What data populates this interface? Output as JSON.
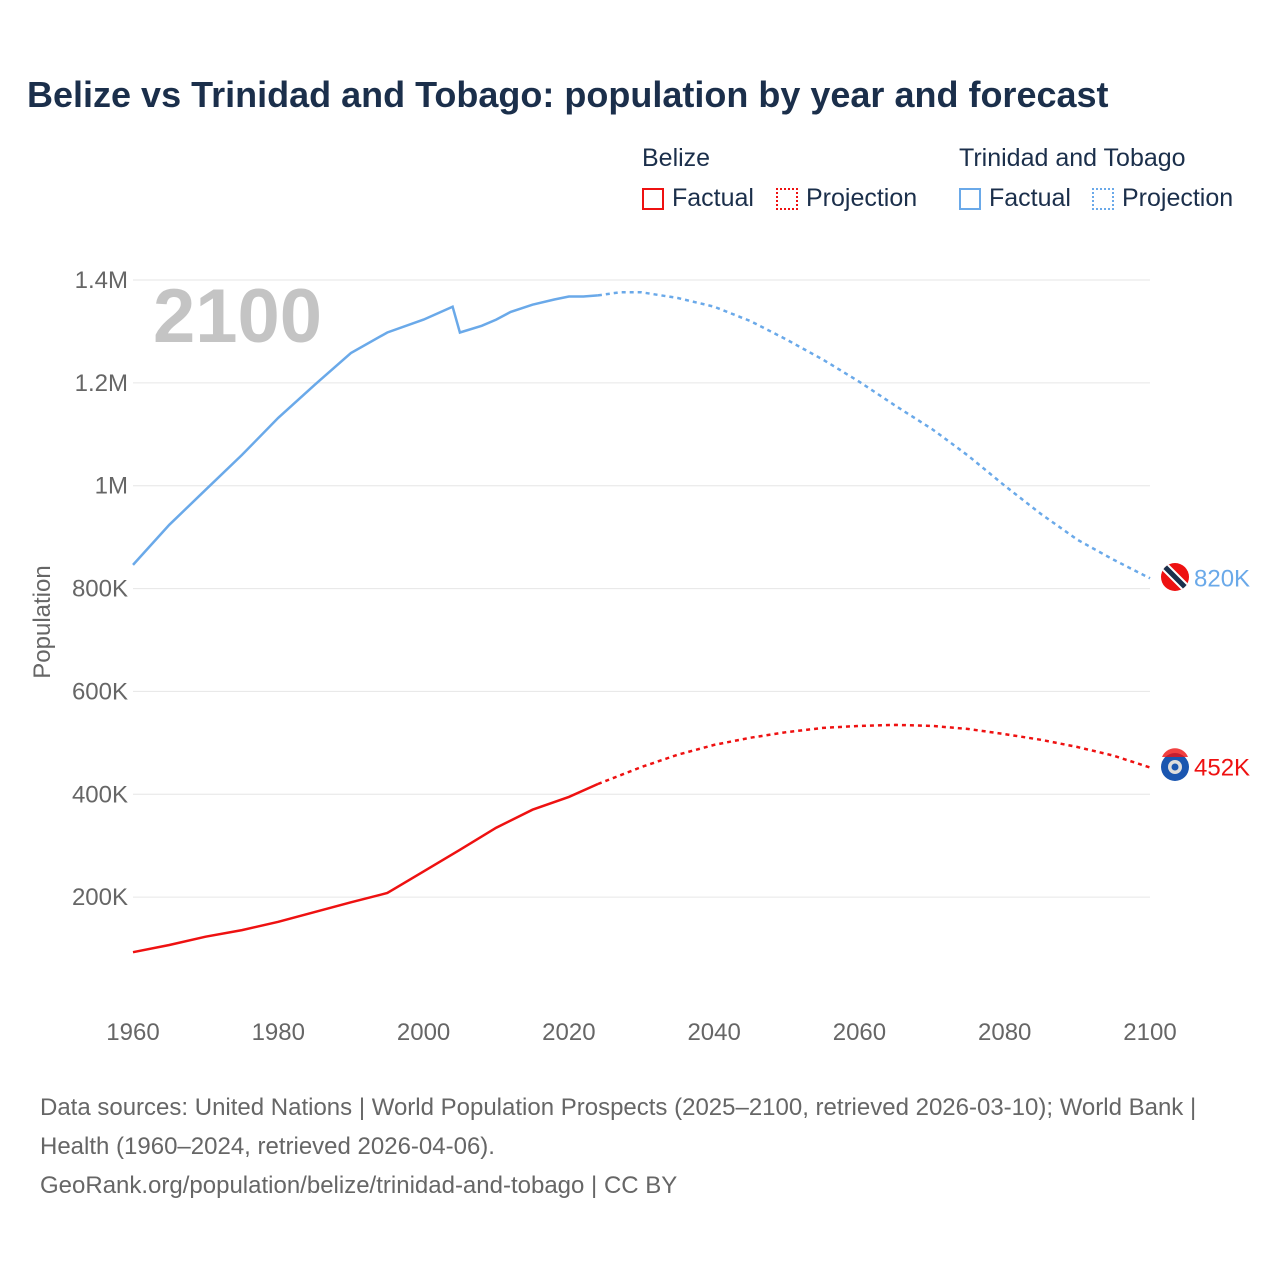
{
  "title": "Belize vs Trinidad and Tobago: population by year and forecast",
  "legend": {
    "groups": [
      {
        "name": "Belize",
        "factual": "Factual",
        "projection": "Projection",
        "color": "#ee1111"
      },
      {
        "name": "Trinidad and Tobago",
        "factual": "Factual",
        "projection": "Projection",
        "color": "#6aa9e9"
      }
    ]
  },
  "year_label": "2100",
  "source": "Data sources: United Nations | World Population Prospects (2025–2100, retrieved 2026-03-10); World Bank | Health (1960–2024, retrieved 2026-04-06).",
  "credit": "GeoRank.org/population/belize/trinidad-and-tobago | CC BY",
  "chart_data": {
    "type": "line",
    "title": "Belize vs Trinidad and Tobago: population by year and forecast",
    "ylabel": "Population",
    "xlabel": "",
    "xlim": [
      1960,
      2100
    ],
    "ylim": [
      0,
      1400000
    ],
    "xticks": [
      1960,
      1980,
      2000,
      2020,
      2040,
      2060,
      2080,
      2100
    ],
    "xtick_labels": [
      "1960",
      "1980",
      "2000",
      "2020",
      "2040",
      "2060",
      "2080",
      "2100"
    ],
    "yticks": [
      200000,
      400000,
      600000,
      800000,
      1000000,
      1200000,
      1400000
    ],
    "ytick_labels": [
      "200K",
      "400K",
      "600K",
      "800K",
      "1M",
      "1.2M",
      "1.4M"
    ],
    "grid": true,
    "series": [
      {
        "name": "Belize",
        "color": "#ee1111",
        "end_label": "452K",
        "factual": [
          [
            1960,
            93000
          ],
          [
            1965,
            107000
          ],
          [
            1970,
            123000
          ],
          [
            1975,
            136000
          ],
          [
            1980,
            152000
          ],
          [
            1985,
            171000
          ],
          [
            1990,
            190000
          ],
          [
            1995,
            208000
          ],
          [
            2000,
            250000
          ],
          [
            2005,
            292000
          ],
          [
            2010,
            335000
          ],
          [
            2015,
            370000
          ],
          [
            2020,
            395000
          ],
          [
            2024,
            420000
          ]
        ],
        "projection": [
          [
            2024,
            420000
          ],
          [
            2030,
            453000
          ],
          [
            2035,
            477000
          ],
          [
            2040,
            496000
          ],
          [
            2045,
            510000
          ],
          [
            2050,
            521000
          ],
          [
            2055,
            529000
          ],
          [
            2060,
            533000
          ],
          [
            2065,
            535000
          ],
          [
            2070,
            533000
          ],
          [
            2075,
            527000
          ],
          [
            2080,
            517000
          ],
          [
            2085,
            506000
          ],
          [
            2090,
            492000
          ],
          [
            2095,
            475000
          ],
          [
            2100,
            452000
          ]
        ]
      },
      {
        "name": "Trinidad and Tobago",
        "color": "#6aa9e9",
        "end_label": "820K",
        "factual": [
          [
            1960,
            846000
          ],
          [
            1965,
            924000
          ],
          [
            1970,
            992000
          ],
          [
            1975,
            1060000
          ],
          [
            1980,
            1132000
          ],
          [
            1985,
            1196000
          ],
          [
            1990,
            1258000
          ],
          [
            1995,
            1298000
          ],
          [
            2000,
            1323000
          ],
          [
            2004,
            1348000
          ],
          [
            2005,
            1298000
          ],
          [
            2008,
            1311000
          ],
          [
            2010,
            1323000
          ],
          [
            2012,
            1338000
          ],
          [
            2015,
            1352000
          ],
          [
            2018,
            1362000
          ],
          [
            2020,
            1368000
          ],
          [
            2022,
            1368000
          ],
          [
            2024,
            1370000
          ]
        ],
        "projection": [
          [
            2024,
            1370000
          ],
          [
            2027,
            1376000
          ],
          [
            2030,
            1376000
          ],
          [
            2035,
            1365000
          ],
          [
            2040,
            1348000
          ],
          [
            2045,
            1320000
          ],
          [
            2050,
            1284000
          ],
          [
            2055,
            1245000
          ],
          [
            2060,
            1202000
          ],
          [
            2065,
            1155000
          ],
          [
            2070,
            1110000
          ],
          [
            2075,
            1058000
          ],
          [
            2080,
            1000000
          ],
          [
            2085,
            945000
          ],
          [
            2090,
            895000
          ],
          [
            2095,
            856000
          ],
          [
            2100,
            820000
          ]
        ]
      }
    ]
  }
}
